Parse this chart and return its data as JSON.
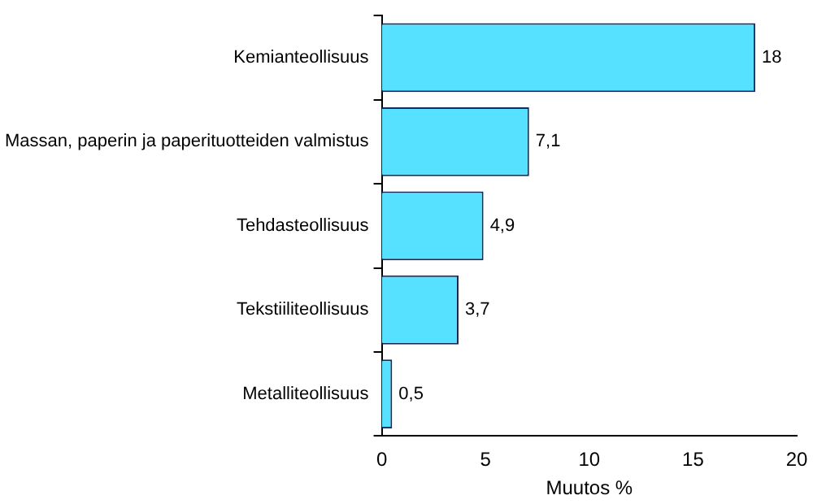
{
  "chart_data": {
    "type": "bar",
    "orientation": "horizontal",
    "categories": [
      "Kemianteollisuus",
      "Massan, paperin ja paperituotteiden valmistus",
      "Tehdasteollisuus",
      "Tekstiiliteollisuus",
      "Metalliteollisuus"
    ],
    "values": [
      18,
      7.1,
      4.9,
      3.7,
      0.5
    ],
    "value_labels": [
      "18",
      "7,1",
      "4,9",
      "3,7",
      "0,5"
    ],
    "color": "#55e1ff",
    "xlabel": "Muutos %",
    "xlim": [
      0,
      20
    ],
    "xticks": [
      0,
      5,
      10,
      15,
      20
    ],
    "grid": false,
    "legend": false
  }
}
